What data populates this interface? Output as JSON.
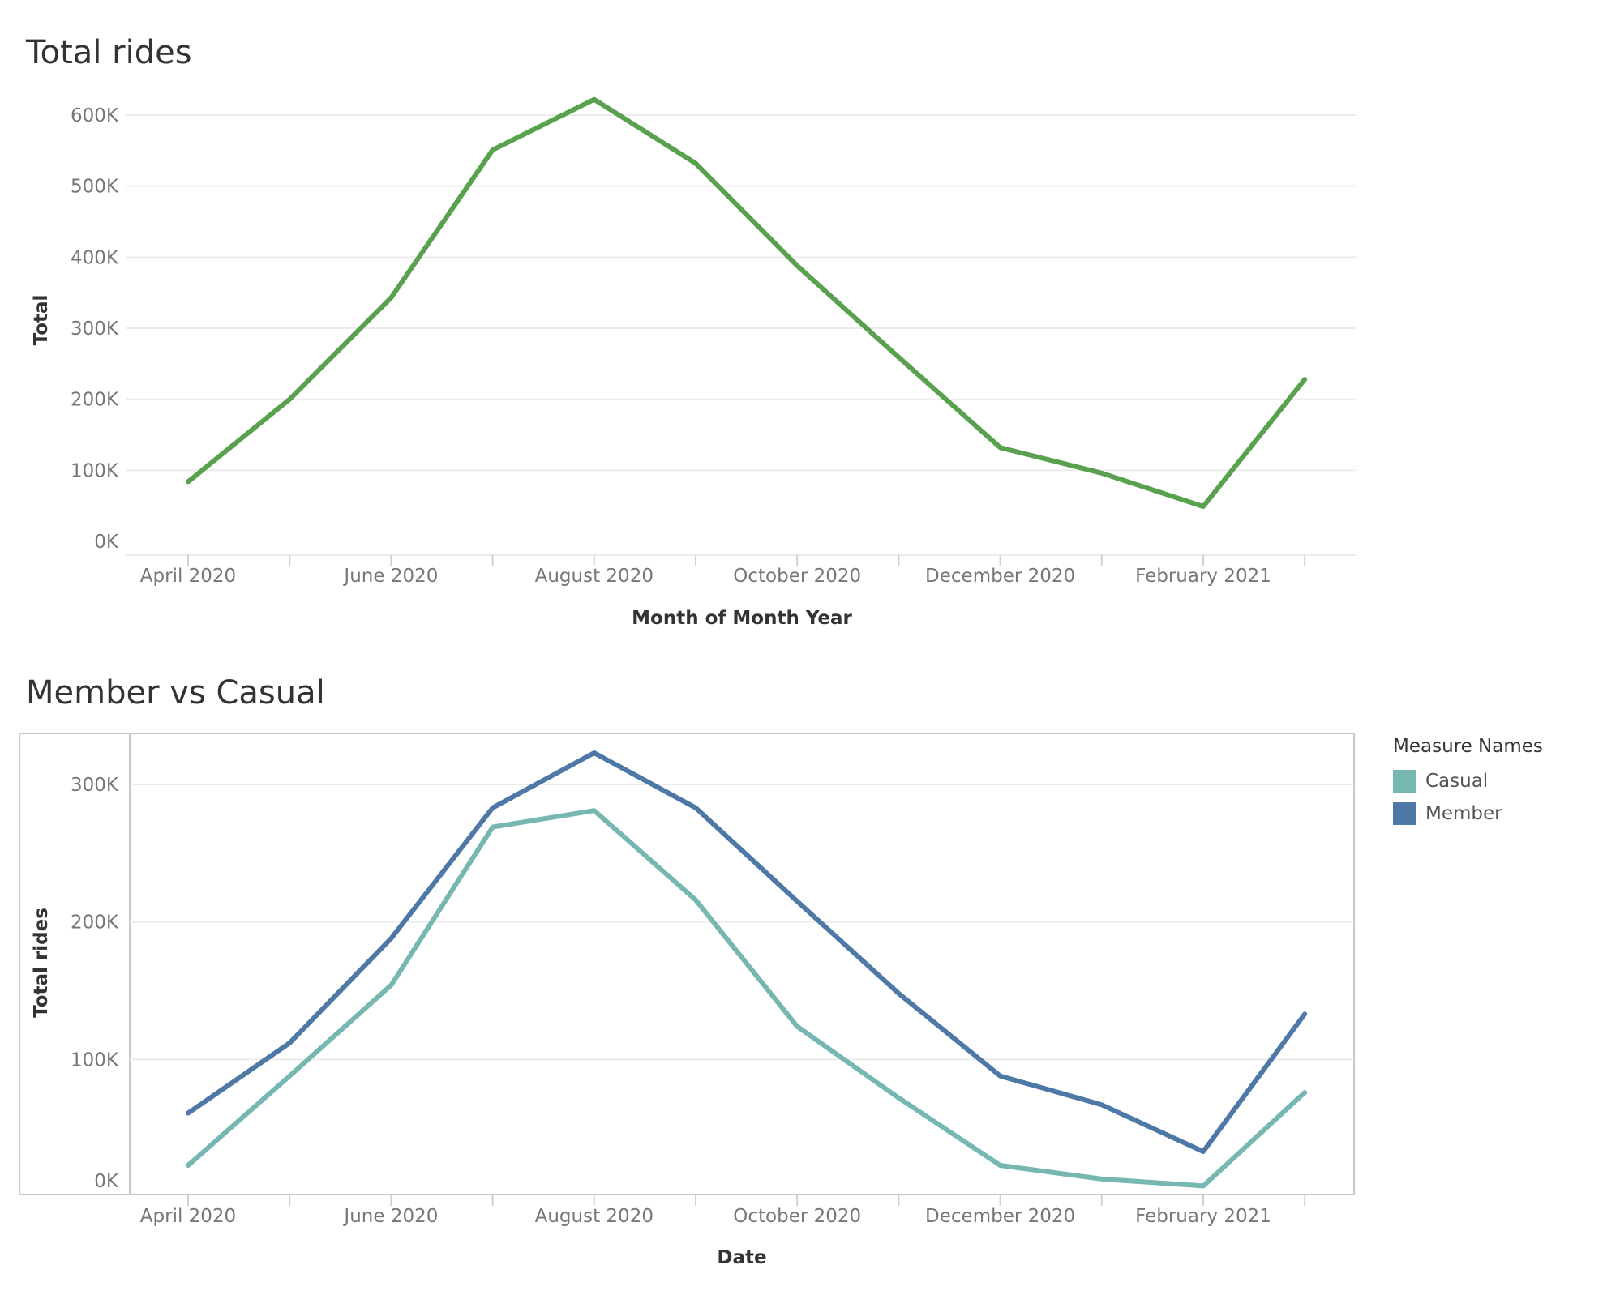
{
  "chart_data": [
    {
      "type": "line",
      "title": "Total rides",
      "xlabel": "Month of Month Year",
      "ylabel": "Total",
      "x": [
        "2020-04",
        "2020-05",
        "2020-06",
        "2020-07",
        "2020-08",
        "2020-09",
        "2020-10",
        "2020-11",
        "2020-12",
        "2021-01",
        "2021-02",
        "2021-03"
      ],
      "x_ticks": [
        "April 2020",
        "June 2020",
        "August 2020",
        "October 2020",
        "December 2020",
        "February 2021"
      ],
      "y_ticks": [
        "0K",
        "100K",
        "200K",
        "300K",
        "400K",
        "500K",
        "600K"
      ],
      "ylim": [
        0,
        600000
      ],
      "grid": true,
      "series": [
        {
          "color": "#59a14f",
          "values": [
            84000,
            200000,
            343000,
            551000,
            622000,
            532000,
            388000,
            259000,
            132000,
            96000,
            49000,
            228000
          ]
        }
      ]
    },
    {
      "type": "line",
      "title": "Member vs Casual",
      "xlabel": "Date",
      "ylabel": "Total rides",
      "x": [
        "2020-04",
        "2020-05",
        "2020-06",
        "2020-07",
        "2020-08",
        "2020-09",
        "2020-10",
        "2020-11",
        "2020-12",
        "2021-01",
        "2021-02",
        "2021-03"
      ],
      "x_ticks": [
        "April 2020",
        "June 2020",
        "August 2020",
        "October 2020",
        "December 2020",
        "February 2021"
      ],
      "y_ticks": [
        "0K",
        "100K",
        "200K",
        "300K"
      ],
      "ylim": [
        0,
        300000
      ],
      "grid": true,
      "legend": {
        "title": "Measure Names",
        "placement": "right"
      },
      "series": [
        {
          "name": "Casual",
          "color": "#76b7b2",
          "values": [
            23000,
            88000,
            154000,
            269000,
            281000,
            216000,
            124000,
            72000,
            23000,
            13000,
            8000,
            76000
          ]
        },
        {
          "name": "Member",
          "color": "#4e79a7",
          "values": [
            61000,
            112000,
            188000,
            283000,
            323000,
            283000,
            215000,
            148000,
            88000,
            67000,
            33000,
            133000
          ]
        }
      ]
    }
  ]
}
